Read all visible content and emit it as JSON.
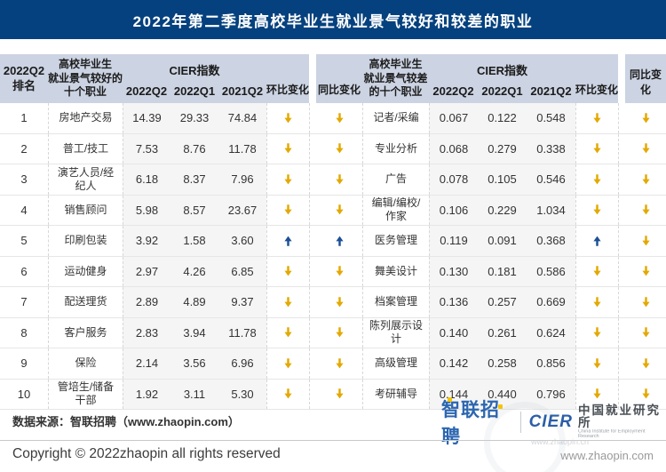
{
  "colors": {
    "title_bar": "#05417e",
    "header_band": "#ccd3e2",
    "value_col_bg": "#f5f5f5",
    "up_arrow": "#1c4f96",
    "down_arrow": "#e3a900",
    "zhaopin_blue": "#2c66b0",
    "zhaopin_yellow": "#f5c400"
  },
  "title": "2022年第二季度高校毕业生就业景气较好和较差的职业",
  "table": {
    "rank_header": {
      "line1": "2022Q2",
      "line2": "排名"
    },
    "good_occ_header": {
      "line1": "高校毕业生",
      "line2": "就业景气较好的",
      "line3": "十个职业"
    },
    "bad_occ_header": {
      "line1": "高校毕业生",
      "line2": "就业景气较差",
      "line3": "的十个职业"
    },
    "cier_header": "CIER指数",
    "q_headers": {
      "q2": "2022Q2",
      "q1": "2022Q1",
      "q3": "2021Q2"
    },
    "mom_header": "环比变化",
    "yoy_header": "同比变化",
    "rows": [
      {
        "rank": "1",
        "good_name": "房地产交易",
        "good_q2": "14.39",
        "good_q1": "29.33",
        "good_q3": "74.84",
        "good_mom": "down",
        "good_yoy": "down",
        "bad_name": "记者/采编",
        "bad_q2": "0.067",
        "bad_q1": "0.122",
        "bad_q3": "0.548",
        "bad_mom": "down",
        "bad_yoy": "down"
      },
      {
        "rank": "2",
        "good_name": "普工/技工",
        "good_q2": "7.53",
        "good_q1": "8.76",
        "good_q3": "11.78",
        "good_mom": "down",
        "good_yoy": "down",
        "bad_name": "专业分析",
        "bad_q2": "0.068",
        "bad_q1": "0.279",
        "bad_q3": "0.338",
        "bad_mom": "down",
        "bad_yoy": "down"
      },
      {
        "rank": "3",
        "good_name": "演艺人员/经纪人",
        "good_q2": "6.18",
        "good_q1": "8.37",
        "good_q3": "7.96",
        "good_mom": "down",
        "good_yoy": "down",
        "bad_name": "广告",
        "bad_q2": "0.078",
        "bad_q1": "0.105",
        "bad_q3": "0.546",
        "bad_mom": "down",
        "bad_yoy": "down"
      },
      {
        "rank": "4",
        "good_name": "销售顾问",
        "good_q2": "5.98",
        "good_q1": "8.57",
        "good_q3": "23.67",
        "good_mom": "down",
        "good_yoy": "down",
        "bad_name": "编辑/编校/作家",
        "bad_q2": "0.106",
        "bad_q1": "0.229",
        "bad_q3": "1.034",
        "bad_mom": "down",
        "bad_yoy": "down"
      },
      {
        "rank": "5",
        "good_name": "印刷包装",
        "good_q2": "3.92",
        "good_q1": "1.58",
        "good_q3": "3.60",
        "good_mom": "up",
        "good_yoy": "up",
        "bad_name": "医务管理",
        "bad_q2": "0.119",
        "bad_q1": "0.091",
        "bad_q3": "0.368",
        "bad_mom": "up",
        "bad_yoy": "down"
      },
      {
        "rank": "6",
        "good_name": "运动健身",
        "good_q2": "2.97",
        "good_q1": "4.26",
        "good_q3": "6.85",
        "good_mom": "down",
        "good_yoy": "down",
        "bad_name": "舞美设计",
        "bad_q2": "0.130",
        "bad_q1": "0.181",
        "bad_q3": "0.586",
        "bad_mom": "down",
        "bad_yoy": "down"
      },
      {
        "rank": "7",
        "good_name": "配送理货",
        "good_q2": "2.89",
        "good_q1": "4.89",
        "good_q3": "9.37",
        "good_mom": "down",
        "good_yoy": "down",
        "bad_name": "档案管理",
        "bad_q2": "0.136",
        "bad_q1": "0.257",
        "bad_q3": "0.669",
        "bad_mom": "down",
        "bad_yoy": "down"
      },
      {
        "rank": "8",
        "good_name": "客户服务",
        "good_q2": "2.83",
        "good_q1": "3.94",
        "good_q3": "11.78",
        "good_mom": "down",
        "good_yoy": "down",
        "bad_name": "陈列展示设计",
        "bad_q2": "0.140",
        "bad_q1": "0.261",
        "bad_q3": "0.624",
        "bad_mom": "down",
        "bad_yoy": "down"
      },
      {
        "rank": "9",
        "good_name": "保险",
        "good_q2": "2.14",
        "good_q1": "3.56",
        "good_q3": "6.96",
        "good_mom": "down",
        "good_yoy": "down",
        "bad_name": "高级管理",
        "bad_q2": "0.142",
        "bad_q1": "0.258",
        "bad_q3": "0.856",
        "bad_mom": "down",
        "bad_yoy": "down"
      },
      {
        "rank": "10",
        "good_name": "管培生/储备干部",
        "good_q2": "1.92",
        "good_q1": "3.11",
        "good_q3": "5.30",
        "good_mom": "down",
        "good_yoy": "down",
        "bad_name": "考研辅导",
        "bad_q2": "0.144",
        "bad_q1": "0.440",
        "bad_q3": "0.796",
        "bad_mom": "down",
        "bad_yoy": "down"
      }
    ]
  },
  "footer": {
    "data_source": "数据来源：智联招聘（www.zhaopin.com）",
    "copyright": "Copyright ©  2022zhaopin all rights reserved",
    "website": "www.zhaopin.com",
    "watermark": "www.zhaopin.cn",
    "logos": {
      "zhaopin": "智联招聘",
      "cier": "CIER",
      "cier_cn": "中国就业研究所",
      "cier_en": "China Institute for Employment Research"
    }
  },
  "chart_data": {
    "type": "table",
    "title": "2022年第二季度高校毕业生就业景气较好和较差的职业",
    "good_jobs": {
      "columns": [
        "2022Q2排名",
        "高校毕业生就业景气较好的十个职业",
        "CIER指数2022Q2",
        "CIER指数2022Q1",
        "CIER指数2021Q2",
        "环比变化",
        "同比变化"
      ],
      "rows": [
        [
          1,
          "房地产交易",
          14.39,
          29.33,
          74.84,
          "down",
          "down"
        ],
        [
          2,
          "普工/技工",
          7.53,
          8.76,
          11.78,
          "down",
          "down"
        ],
        [
          3,
          "演艺人员/经纪人",
          6.18,
          8.37,
          7.96,
          "down",
          "down"
        ],
        [
          4,
          "销售顾问",
          5.98,
          8.57,
          23.67,
          "down",
          "down"
        ],
        [
          5,
          "印刷包装",
          3.92,
          1.58,
          3.6,
          "up",
          "up"
        ],
        [
          6,
          "运动健身",
          2.97,
          4.26,
          6.85,
          "down",
          "down"
        ],
        [
          7,
          "配送理货",
          2.89,
          4.89,
          9.37,
          "down",
          "down"
        ],
        [
          8,
          "客户服务",
          2.83,
          3.94,
          11.78,
          "down",
          "down"
        ],
        [
          9,
          "保险",
          2.14,
          3.56,
          6.96,
          "down",
          "down"
        ],
        [
          10,
          "管培生/储备干部",
          1.92,
          3.11,
          5.3,
          "down",
          "down"
        ]
      ]
    },
    "bad_jobs": {
      "columns": [
        "2022Q2排名",
        "高校毕业生就业景气较差的十个职业",
        "CIER指数2022Q2",
        "CIER指数2022Q1",
        "CIER指数2021Q2",
        "环比变化",
        "同比变化"
      ],
      "rows": [
        [
          1,
          "记者/采编",
          0.067,
          0.122,
          0.548,
          "down",
          "down"
        ],
        [
          2,
          "专业分析",
          0.068,
          0.279,
          0.338,
          "down",
          "down"
        ],
        [
          3,
          "广告",
          0.078,
          0.105,
          0.546,
          "down",
          "down"
        ],
        [
          4,
          "编辑/编校/作家",
          0.106,
          0.229,
          1.034,
          "down",
          "down"
        ],
        [
          5,
          "医务管理",
          0.119,
          0.091,
          0.368,
          "up",
          "down"
        ],
        [
          6,
          "舞美设计",
          0.13,
          0.181,
          0.586,
          "down",
          "down"
        ],
        [
          7,
          "档案管理",
          0.136,
          0.257,
          0.669,
          "down",
          "down"
        ],
        [
          8,
          "陈列展示设计",
          0.14,
          0.261,
          0.624,
          "down",
          "down"
        ],
        [
          9,
          "高级管理",
          0.142,
          0.258,
          0.856,
          "down",
          "down"
        ],
        [
          10,
          "考研辅导",
          0.144,
          0.44,
          0.796,
          "down",
          "down"
        ]
      ]
    }
  }
}
